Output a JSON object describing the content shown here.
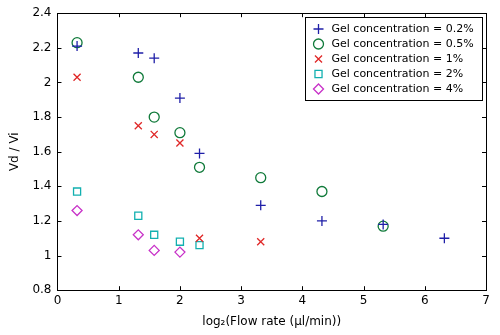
{
  "chart_data": {
    "type": "scatter",
    "x_label": "log₂(Flow rate (μl/min))",
    "y_label": "Vd / Vi",
    "xlim": [
      0,
      7
    ],
    "xticks": [
      0,
      1,
      2,
      3,
      4,
      5,
      6,
      7
    ],
    "ylim": [
      0.8,
      2.4
    ],
    "yticks": [
      0.8,
      1,
      1.2,
      1.4,
      1.6,
      1.8,
      2,
      2.2,
      2.4
    ],
    "grid": false,
    "legend": "top-right",
    "series": [
      {
        "name": "Gel concentration = 0.2%",
        "color": "#1f1fa8",
        "marker": "plus",
        "x": [
          0.32,
          1.32,
          1.58,
          2.0,
          2.32,
          3.32,
          4.32,
          5.32,
          6.32
        ],
        "values": [
          2.21,
          2.17,
          2.14,
          1.91,
          1.59,
          1.29,
          1.2,
          1.18,
          1.1
        ]
      },
      {
        "name": "Gel concentration = 0.5%",
        "color": "#107a3a",
        "marker": "circle",
        "x": [
          0.32,
          1.32,
          1.58,
          2.0,
          2.32,
          3.32,
          4.32,
          5.32
        ],
        "values": [
          2.23,
          2.03,
          1.8,
          1.71,
          1.51,
          1.45,
          1.37,
          1.17
        ]
      },
      {
        "name": "Gel concentration = 1%",
        "color": "#e02828",
        "marker": "x",
        "x": [
          0.32,
          1.32,
          1.58,
          2.0,
          2.32,
          3.32
        ],
        "values": [
          2.03,
          1.75,
          1.7,
          1.65,
          1.1,
          1.08
        ]
      },
      {
        "name": "Gel concentration = 2%",
        "color": "#12b0b0",
        "marker": "square",
        "x": [
          0.32,
          1.32,
          1.58,
          2.0,
          2.32
        ],
        "values": [
          1.37,
          1.23,
          1.12,
          1.08,
          1.06
        ]
      },
      {
        "name": "Gel concentration = 4%",
        "color": "#c832c8",
        "marker": "diamond",
        "x": [
          0.32,
          1.32,
          1.58,
          2.0
        ],
        "values": [
          1.26,
          1.12,
          1.03,
          1.02
        ]
      }
    ]
  }
}
